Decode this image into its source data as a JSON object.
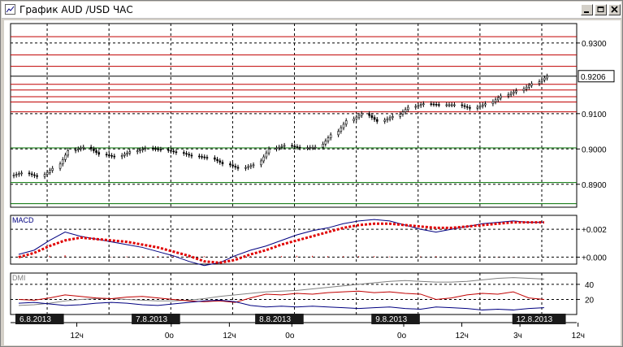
{
  "window": {
    "title": "График AUD /USD  ЧАС",
    "icons": {
      "app": "chart-window-icon",
      "minimize": "minimize-icon",
      "maximize": "maximize-icon",
      "close": "close-icon"
    }
  },
  "colors": {
    "candle": "#000000",
    "resistance": "#c00000",
    "support": "#007000",
    "macd_line": "#000080",
    "macd_signal": "#e00000",
    "macd_hist": "#e00000",
    "dmi_adx": "#808080",
    "dmi_plus": "#c00000",
    "dmi_minus": "#000080"
  },
  "chart_data": [
    {
      "type": "candlestick",
      "title": "",
      "current_price_label": "0.9206",
      "y_tick_labels": [
        "0.9300",
        "0.9206",
        "0.9100",
        "0.9000",
        "0.8900"
      ],
      "ylim": [
        0.8835,
        0.9355
      ],
      "grid": true,
      "resistance_levels": [
        0.9318,
        0.9266,
        0.9234,
        0.9206,
        0.9183,
        0.9167,
        0.9148,
        0.9133,
        0.9105
      ],
      "support_levels": [
        0.9003,
        0.8905,
        0.8845
      ],
      "x": [
        "6.8.2013 00",
        "6.8.2013 03",
        "6.8.2013 06",
        "6.8.2013 09",
        "6.8.2013 12",
        "6.8.2013 15",
        "6.8.2013 18",
        "6.8.2013 21",
        "7.8.2013 00",
        "7.8.2013 03",
        "7.8.2013 06",
        "7.8.2013 09",
        "7.8.2013 12",
        "7.8.2013 15",
        "7.8.2013 18",
        "7.8.2013 21",
        "8.8.2013 00",
        "8.8.2013 03",
        "8.8.2013 06",
        "8.8.2013 09",
        "8.8.2013 12",
        "8.8.2013 15",
        "8.8.2013 18",
        "8.8.2013 21",
        "9.8.2013 00",
        "9.8.2013 03",
        "9.8.2013 06",
        "9.8.2013 09",
        "9.8.2013 12",
        "9.8.2013 15",
        "9.8.2013 18",
        "9.8.2013 21",
        "12.8.2013 00",
        "12.8.2013 03",
        "12.8.2013 06"
      ],
      "close": [
        0.8932,
        0.8922,
        0.8945,
        0.8995,
        0.9005,
        0.8985,
        0.8978,
        0.8992,
        0.9002,
        0.8998,
        0.899,
        0.898,
        0.8975,
        0.8958,
        0.8945,
        0.8955,
        0.9,
        0.901,
        0.9003,
        0.9005,
        0.904,
        0.908,
        0.91,
        0.9078,
        0.9092,
        0.9118,
        0.9128,
        0.9125,
        0.9125,
        0.9115,
        0.9128,
        0.915,
        0.9165,
        0.9185,
        0.9206
      ],
      "x_ticks": [
        {
          "label": "6.8.2013",
          "dark": true
        },
        {
          "label": "12ч",
          "dark": false
        },
        {
          "label": "7.8.2013",
          "dark": true
        },
        {
          "label": "0o",
          "dark": false
        },
        {
          "label": "12ч",
          "dark": false
        },
        {
          "label": "8.8.2013",
          "dark": true
        },
        {
          "label": "0o",
          "dark": false
        },
        {
          "label": "9.8.2013",
          "dark": true
        },
        {
          "label": "0o",
          "dark": false
        },
        {
          "label": "12ч",
          "dark": false
        },
        {
          "label": "3ч",
          "dark": false
        },
        {
          "label": "12.8.2013",
          "dark": true
        },
        {
          "label": "12ч",
          "dark": false
        }
      ]
    },
    {
      "type": "line",
      "name": "MACD",
      "title": "MACD",
      "y_tick_labels": [
        "+0.002",
        "+0.000"
      ],
      "ylim": [
        -0.0005,
        0.003
      ],
      "grid": true,
      "macd": [
        0.0002,
        0.0005,
        0.0012,
        0.0018,
        0.0015,
        0.0013,
        0.0011,
        0.0009,
        0.0007,
        0.0004,
        0.0001,
        -0.0003,
        -0.0006,
        -0.0004,
        0.0001,
        0.0005,
        0.0008,
        0.0012,
        0.0016,
        0.0019,
        0.0021,
        0.0024,
        0.0026,
        0.0027,
        0.0026,
        0.0023,
        0.002,
        0.0018,
        0.002,
        0.0022,
        0.0024,
        0.0025,
        0.0026,
        0.0025,
        0.0025
      ],
      "signal": [
        0.0,
        0.0003,
        0.0008,
        0.0012,
        0.0014,
        0.0013,
        0.0012,
        0.0011,
        0.0009,
        0.0007,
        0.0004,
        0.0001,
        -0.0003,
        -0.0004,
        -0.0002,
        0.0002,
        0.0005,
        0.0009,
        0.0012,
        0.0015,
        0.0018,
        0.0021,
        0.0023,
        0.0024,
        0.0024,
        0.0023,
        0.0022,
        0.0021,
        0.0021,
        0.0022,
        0.0023,
        0.0024,
        0.0025,
        0.0025,
        0.0025
      ]
    },
    {
      "type": "line",
      "name": "DMI",
      "title": "DMI",
      "y_tick_labels": [
        "40",
        "20"
      ],
      "ylim": [
        0,
        55
      ],
      "grid": true,
      "adx": [
        12,
        13,
        15,
        18,
        20,
        21,
        21,
        20,
        19,
        18,
        18,
        19,
        21,
        24,
        26,
        28,
        30,
        31,
        32,
        34,
        36,
        38,
        40,
        42,
        44,
        45,
        44,
        43,
        43,
        44,
        46,
        48,
        49,
        48,
        47
      ],
      "plus_di": [
        20,
        19,
        22,
        26,
        24,
        22,
        21,
        23,
        24,
        22,
        20,
        18,
        17,
        18,
        16,
        22,
        27,
        26,
        28,
        27,
        29,
        30,
        31,
        29,
        30,
        28,
        27,
        20,
        22,
        26,
        28,
        27,
        30,
        22,
        20
      ],
      "minus_di": [
        15,
        16,
        14,
        12,
        13,
        15,
        16,
        15,
        13,
        12,
        14,
        16,
        18,
        19,
        17,
        12,
        10,
        11,
        10,
        11,
        10,
        9,
        8,
        9,
        10,
        8,
        7,
        10,
        9,
        8,
        6,
        7,
        6,
        8,
        9
      ]
    }
  ]
}
